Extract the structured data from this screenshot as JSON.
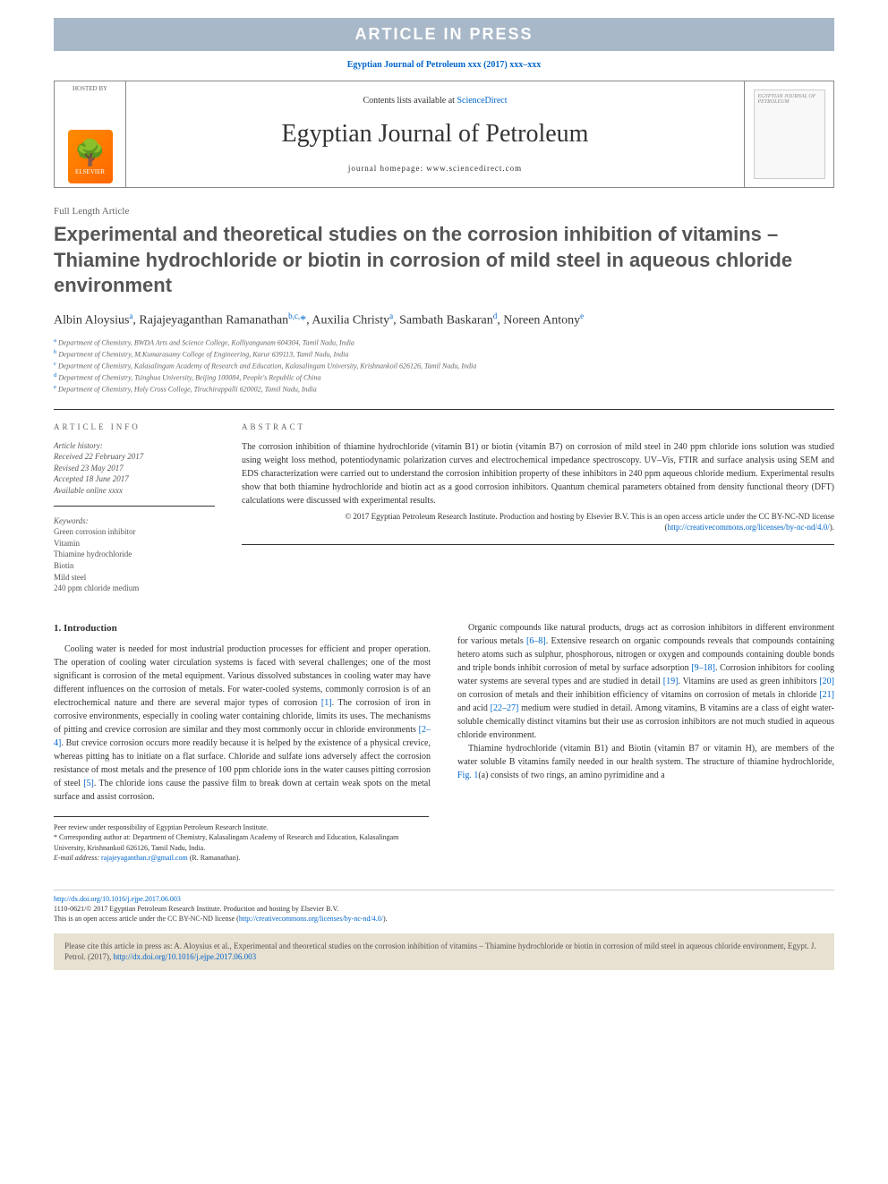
{
  "banner": {
    "article_in_press": "ARTICLE IN PRESS",
    "citation_line": "Egyptian Journal of Petroleum xxx (2017) xxx–xxx"
  },
  "header": {
    "hosted_by": "HOSTED BY",
    "elsevier": "ELSEVIER",
    "contents_prefix": "Contents lists available at ",
    "contents_link": "ScienceDirect",
    "journal_name": "Egyptian Journal of Petroleum",
    "homepage_prefix": "journal homepage: ",
    "homepage_url": "www.sciencedirect.com",
    "cover_text": "EGYPTIAN JOURNAL OF PETROLEUM"
  },
  "article": {
    "type": "Full Length Article",
    "title": "Experimental and theoretical studies on the corrosion inhibition of vitamins – Thiamine hydrochloride or biotin in corrosion of mild steel in aqueous chloride environment",
    "authors_html": "Albin Aloysius<sup>a</sup>, Rajajeyaganthan Ramanathan<sup>b,c,</sup><a>*</a>, Auxilia Christy<sup>a</sup>, Sambath Baskaran<sup>d</sup>, Noreen Antony<sup>e</sup>",
    "affiliations": [
      {
        "sup": "a",
        "text": "Department of Chemistry, BWDA Arts and Science College, Kolliyangunam 604304, Tamil Nadu, India"
      },
      {
        "sup": "b",
        "text": "Department of Chemistry, M.Kumarasamy College of Engineering, Karur 639113, Tamil Nadu, India"
      },
      {
        "sup": "c",
        "text": "Department of Chemistry, Kalasalingam Academy of Research and Education, Kalasalingam University, Krishnankoil 626126, Tamil Nadu, India"
      },
      {
        "sup": "d",
        "text": "Department of Chemistry, Tsinghua University, Beijing 100084, People's Republic of China"
      },
      {
        "sup": "e",
        "text": "Department of Chemistry, Holy Cross College, Tiruchirappalli 620002, Tamil Nadu, India"
      }
    ]
  },
  "info": {
    "section_label": "article info",
    "history_label": "Article history:",
    "history": [
      "Received 22 February 2017",
      "Revised 23 May 2017",
      "Accepted 18 June 2017",
      "Available online xxxx"
    ],
    "keywords_label": "Keywords:",
    "keywords": [
      "Green corrosion inhibitor",
      "Vitamin",
      "Thiamine hydrochloride",
      "Biotin",
      "Mild steel",
      "240 ppm chloride medium"
    ]
  },
  "abstract": {
    "section_label": "abstract",
    "text": "The corrosion inhibition of thiamine hydrochloride (vitamin B1) or biotin (vitamin B7) on corrosion of mild steel in 240 ppm chloride ions solution was studied using weight loss method, potentiodynamic polarization curves and electrochemical impedance spectroscopy. UV–Vis, FTIR and surface analysis using SEM and EDS characterization were carried out to understand the corrosion inhibition property of these inhibitors in 240 ppm aqueous chloride medium. Experimental results show that both thiamine hydrochloride and biotin act as a good corrosion inhibitors. Quantum chemical parameters obtained from density functional theory (DFT) calculations were discussed with experimental results.",
    "copyright": "© 2017 Egyptian Petroleum Research Institute. Production and hosting by Elsevier B.V. This is an open access article under the CC BY-NC-ND license (",
    "license_url": "http://creativecommons.org/licenses/by-nc-nd/4.0/",
    "copyright_close": ")."
  },
  "body": {
    "heading": "1. Introduction",
    "p1": "Cooling water is needed for most industrial production processes for efficient and proper operation. The operation of cooling water circulation systems is faced with several challenges; one of the most significant is corrosion of the metal equipment. Various dissolved substances in cooling water may have different influences on the corrosion of metals. For water-cooled systems, commonly corrosion is of an electrochemical nature and there are several major types of corrosion ",
    "ref1": "[1]",
    "p1b": ". The corrosion of iron in corrosive environments, especially in cooling water containing chloride, limits its uses. The mechanisms of pitting and crevice corrosion are similar and they most commonly occur in chloride environments ",
    "ref2": "[2–4]",
    "p1c": ". But crevice corrosion occurs more readily because it is helped by the existence of a physical crevice, whereas pitting has to initiate on a flat surface. Chloride and sulfate ions adversely",
    "p2a": "affect the corrosion resistance of most metals and the presence of 100 ppm chloride ions in the water causes pitting corrosion of steel ",
    "ref5": "[5]",
    "p2b": ". The chloride ions cause the passive film to break down at certain weak spots on the metal surface and assist corrosion.",
    "p3a": "Organic compounds like natural products, drugs act as corrosion inhibitors in different environment for various metals ",
    "ref68": "[6–8]",
    "p3b": ". Extensive research on organic compounds reveals that compounds containing hetero atoms such as sulphur, phosphorous, nitrogen or oxygen and compounds containing double bonds and triple bonds inhibit corrosion of metal by surface adsorption ",
    "ref918": "[9–18]",
    "p3c": ". Corrosion inhibitors for cooling water systems are several types and are studied in detail ",
    "ref19": "[19]",
    "p3d": ". Vitamins are used as green inhibitors ",
    "ref20": "[20]",
    "p3e": " on corrosion of metals and their inhibition efficiency of vitamins on corrosion of metals in chloride ",
    "ref21": "[21]",
    "p3f": " and acid ",
    "ref2227": "[22–27]",
    "p3g": " medium were studied in detail. Among vitamins, B vitamins are a class of eight water-soluble chemically distinct vitamins but their use as corrosion inhibitors are not much studied in aqueous chloride environment.",
    "p4": "Thiamine hydrochloride (vitamin B1) and Biotin (vitamin B7 or vitamin H), are members of the water soluble B vitamins family needed in our health system. The structure of thiamine hydrochloride, ",
    "fig1": "Fig. 1",
    "p4b": "(a) consists of two rings, an amino pyrimidine and a"
  },
  "footnotes": {
    "peer": "Peer review under responsibility of Egyptian Petroleum Research Institute.",
    "corr_label": "* Corresponding author at: Department of Chemistry, Kalasalingam Academy of Research and Education, Kalasalingam University, Krishnankoil 626126, Tamil Nadu, India.",
    "email_label": "E-mail address: ",
    "email": "rajajeyaganthan.r@gmail.com",
    "email_suffix": " (R. Ramanathan)."
  },
  "doi": {
    "url": "http://dx.doi.org/10.1016/j.ejpe.2017.06.003",
    "line2": "1110-0621/© 2017 Egyptian Petroleum Research Institute. Production and hosting by Elsevier B.V.",
    "line3a": "This is an open access article under the CC BY-NC-ND license (",
    "license_url": "http://creativecommons.org/licenses/by-nc-nd/4.0/",
    "line3b": ")."
  },
  "citebox": {
    "text": "Please cite this article in press as: A. Aloysius et al., Experimental and theoretical studies on the corrosion inhibition of vitamins – Thiamine hydrochloride or biotin in corrosion of mild steel in aqueous chloride environment, Egypt. J. Petrol. (2017), ",
    "url": "http://dx.doi.org/10.1016/j.ejpe.2017.06.003"
  },
  "colors": {
    "banner_bg": "#a8b8c8",
    "link": "#0066cc",
    "text": "#333333",
    "muted": "#666666",
    "citebox_bg": "#e8e0d0"
  }
}
